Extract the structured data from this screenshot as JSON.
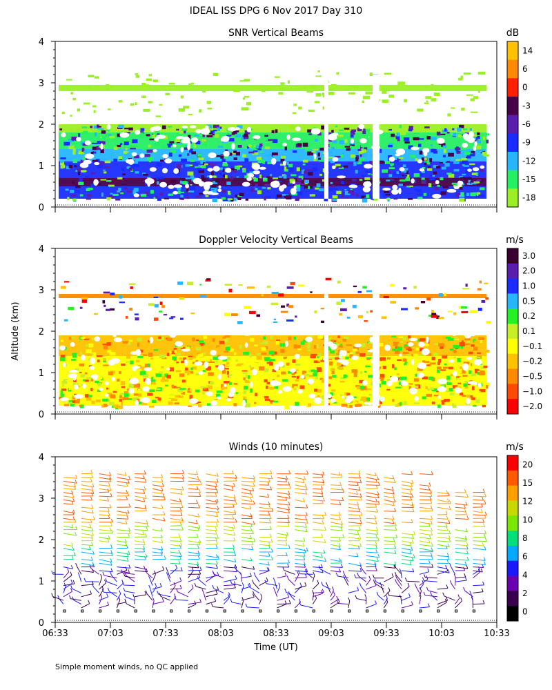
{
  "figure": {
    "title": "IDEAL ISS DPG    6 Nov 2017 Day 310",
    "footnote": "Simple moment winds, no QC applied",
    "ylabel": "Altitude (km)",
    "xlabel": "Time (UT)"
  },
  "chart_data": [
    {
      "type": "heatmap",
      "title": "SNR Vertical Beams",
      "ylim": [
        0,
        4
      ],
      "yticks": [
        "0",
        "1",
        "2",
        "3",
        "4"
      ],
      "xlim": [
        "06:33",
        "10:33"
      ],
      "colorbar": {
        "unit": "dB",
        "labels": [
          "14",
          "6",
          "0",
          "-3",
          "-6",
          "-9",
          "-12",
          "-15",
          "-18"
        ],
        "colors": [
          "#ffc200",
          "#ff8a00",
          "#ff2000",
          "#48004a",
          "#5a1eae",
          "#1a2cff",
          "#25b6ff",
          "#25ef62",
          "#9bef25"
        ]
      },
      "layers": [
        {
          "alt_min": 0.2,
          "alt_max": 0.5,
          "color": "#1a2cff"
        },
        {
          "alt_min": 0.5,
          "alt_max": 0.7,
          "color": "#48004a"
        },
        {
          "alt_min": 0.7,
          "alt_max": 1.1,
          "color": "#1a2cff"
        },
        {
          "alt_min": 1.1,
          "alt_max": 1.4,
          "color": "#25b6ff"
        },
        {
          "alt_min": 1.4,
          "alt_max": 1.8,
          "color": "#25ef62"
        },
        {
          "alt_min": 1.8,
          "alt_max": 2.0,
          "color": "#9bef25"
        },
        {
          "alt_min": 2.8,
          "alt_max": 2.95,
          "color": "#9bef25"
        }
      ]
    },
    {
      "type": "heatmap",
      "title": "Doppler Velocity Vertical Beams",
      "ylim": [
        0,
        4
      ],
      "yticks": [
        "0",
        "1",
        "2",
        "3",
        "4"
      ],
      "xlim": [
        "06:33",
        "10:33"
      ],
      "colorbar": {
        "unit": "m/s",
        "labels": [
          "3.0",
          "2.0",
          "1.0",
          "0.5",
          "0.2",
          "0.1",
          "−0.1",
          "−0.2",
          "−0.5",
          "−1.0",
          "−2.0"
        ],
        "colors": [
          "#3a0030",
          "#5a1eae",
          "#1a2cff",
          "#25b6ff",
          "#25ef25",
          "#c8ef25",
          "#ffff00",
          "#ffc200",
          "#ff8a00",
          "#ff4a00",
          "#ff0000"
        ]
      },
      "layers": [
        {
          "alt_min": 0.2,
          "alt_max": 1.4,
          "color": "#ffff00"
        },
        {
          "alt_min": 1.4,
          "alt_max": 1.9,
          "color": "#ffc200"
        },
        {
          "alt_min": 2.8,
          "alt_max": 2.9,
          "color": "#ff8a00"
        }
      ]
    },
    {
      "type": "scatter",
      "title": "Winds (10 minutes)",
      "ylim": [
        0,
        4
      ],
      "yticks": [
        "0",
        "1",
        "2",
        "3",
        "4"
      ],
      "xlim": [
        "06:33",
        "10:33"
      ],
      "xticks": [
        "06:33",
        "07:03",
        "07:33",
        "08:03",
        "08:33",
        "09:03",
        "09:33",
        "10:03",
        "10:33"
      ],
      "colorbar": {
        "unit": "m/s",
        "labels": [
          "20",
          "15",
          "12",
          "10",
          "8",
          "6",
          "4",
          "2",
          "0"
        ],
        "colors": [
          "#ff0000",
          "#ff5a00",
          "#ffa000",
          "#c8d800",
          "#7ae800",
          "#00e078",
          "#00aaff",
          "#1a1aff",
          "#6a00b0",
          "#3a0050",
          "#000000"
        ]
      }
    }
  ]
}
